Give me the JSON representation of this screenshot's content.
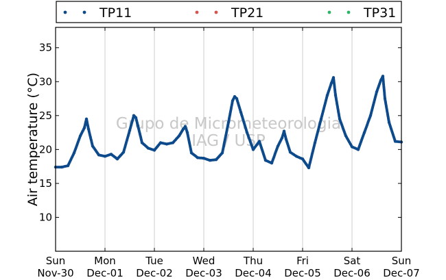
{
  "chart_data": {
    "type": "scatter",
    "ylabel": "Air temperature (°C)",
    "xlabel": "",
    "ylim": [
      5,
      38
    ],
    "xlim": [
      "2014-11-30 00:00",
      "2014-12-07 00:00"
    ],
    "yticks": [
      10,
      15,
      20,
      25,
      30,
      35
    ],
    "xticks": [
      {
        "line1": "Sun",
        "line2": "Nov-30"
      },
      {
        "line1": "Mon",
        "line2": "Dec-01"
      },
      {
        "line1": "Tue",
        "line2": "Dec-02"
      },
      {
        "line1": "Wed",
        "line2": "Dec-03"
      },
      {
        "line1": "Thu",
        "line2": "Dec-04"
      },
      {
        "line1": "Fri",
        "line2": "Dec-05"
      },
      {
        "line1": "Sat",
        "line2": "Dec-06"
      },
      {
        "line1": "Sun",
        "line2": "Dec-07"
      }
    ],
    "grid": "vertical",
    "legend_position": "top",
    "watermark": [
      "Grupo de Micrometeorologia",
      "IAG / USP"
    ],
    "series": [
      {
        "name": "TP11",
        "color": "#0d4a8c",
        "x": [
          "2014-11-30 00:00",
          "2014-11-30 03:00",
          "2014-11-30 06:00",
          "2014-11-30 09:00",
          "2014-11-30 12:00",
          "2014-11-30 14:00",
          "2014-11-30 15:00",
          "2014-11-30 16:00",
          "2014-11-30 18:00",
          "2014-11-30 21:00",
          "2014-12-01 00:00",
          "2014-12-01 03:00",
          "2014-12-01 06:00",
          "2014-12-01 09:00",
          "2014-12-01 12:00",
          "2014-12-01 14:00",
          "2014-12-01 15:00",
          "2014-12-01 16:00",
          "2014-12-01 18:00",
          "2014-12-01 21:00",
          "2014-12-02 00:00",
          "2014-12-02 03:00",
          "2014-12-02 06:00",
          "2014-12-02 09:00",
          "2014-12-02 12:00",
          "2014-12-02 14:00",
          "2014-12-02 15:00",
          "2014-12-02 16:00",
          "2014-12-02 18:00",
          "2014-12-02 21:00",
          "2014-12-03 00:00",
          "2014-12-03 03:00",
          "2014-12-03 06:00",
          "2014-12-03 09:00",
          "2014-12-03 12:00",
          "2014-12-03 14:00",
          "2014-12-03 15:00",
          "2014-12-03 16:00",
          "2014-12-03 18:00",
          "2014-12-03 21:00",
          "2014-12-04 00:00",
          "2014-12-04 03:00",
          "2014-12-04 06:00",
          "2014-12-04 09:00",
          "2014-12-04 12:00",
          "2014-12-04 14:00",
          "2014-12-04 15:00",
          "2014-12-04 16:00",
          "2014-12-04 18:00",
          "2014-12-04 21:00",
          "2014-12-05 00:00",
          "2014-12-05 03:00",
          "2014-12-05 06:00",
          "2014-12-05 09:00",
          "2014-12-05 12:00",
          "2014-12-05 14:00",
          "2014-12-05 15:00",
          "2014-12-05 16:00",
          "2014-12-05 18:00",
          "2014-12-05 21:00",
          "2014-12-06 00:00",
          "2014-12-06 03:00",
          "2014-12-06 06:00",
          "2014-12-06 09:00",
          "2014-12-06 12:00",
          "2014-12-06 14:00",
          "2014-12-06 15:00",
          "2014-12-06 16:00",
          "2014-12-06 18:00",
          "2014-12-06 21:00",
          "2014-12-07 00:00"
        ],
        "y": [
          17.4,
          17.4,
          17.6,
          19.5,
          22.0,
          23.2,
          24.5,
          23.0,
          20.5,
          19.2,
          19.0,
          19.3,
          18.6,
          19.6,
          22.8,
          25.0,
          24.7,
          23.5,
          21.0,
          20.2,
          19.9,
          21.0,
          20.8,
          21.0,
          22.0,
          23.0,
          23.4,
          22.5,
          19.5,
          18.8,
          18.7,
          18.4,
          18.5,
          19.5,
          24.0,
          27.2,
          27.8,
          27.5,
          25.5,
          22.5,
          20.0,
          21.2,
          18.4,
          18.0,
          20.5,
          21.7,
          22.7,
          21.5,
          19.6,
          19.0,
          18.6,
          17.3,
          21.0,
          24.5,
          28.0,
          29.8,
          30.6,
          28.0,
          24.5,
          22.0,
          20.4,
          20.0,
          22.5,
          25.0,
          28.5,
          30.2,
          30.8,
          27.5,
          24.0,
          21.2,
          21.1
        ]
      },
      {
        "name": "TP21",
        "color": "#d9534f",
        "x": [],
        "y": []
      },
      {
        "name": "TP31",
        "color": "#2db36a",
        "x": [],
        "y": []
      }
    ]
  }
}
